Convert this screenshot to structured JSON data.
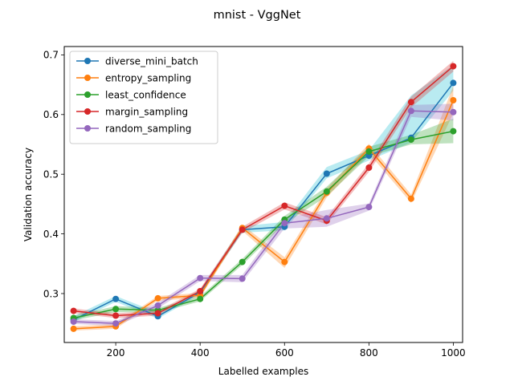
{
  "chart_data": {
    "type": "line",
    "title": "mnist - VggNet",
    "xlabel": "Labelled examples",
    "ylabel": "Validation accuracy",
    "xlim": [
      78,
      1022
    ],
    "ylim": [
      0.218,
      0.714
    ],
    "xticks": [
      200,
      400,
      600,
      800,
      1000
    ],
    "yticks": [
      0.3,
      0.4,
      0.5,
      0.6,
      0.7
    ],
    "grid": false,
    "legend_position": "top-left",
    "x": [
      100,
      200,
      300,
      400,
      500,
      600,
      700,
      800,
      900,
      1000
    ],
    "series": [
      {
        "name": "diverse_mini_batch",
        "color": "#1f77b4",
        "band_color": "#17becf",
        "values": [
          0.256,
          0.291,
          0.262,
          0.302,
          0.407,
          0.412,
          0.501,
          0.531,
          0.561,
          0.653
        ],
        "lower": [
          0.252,
          0.286,
          0.258,
          0.298,
          0.402,
          0.406,
          0.493,
          0.523,
          0.553,
          0.64
        ],
        "upper": [
          0.262,
          0.296,
          0.268,
          0.306,
          0.413,
          0.42,
          0.512,
          0.54,
          0.632,
          0.683
        ]
      },
      {
        "name": "entropy_sampling",
        "color": "#ff7f0e",
        "band_color": "#ff7f0e",
        "values": [
          0.241,
          0.245,
          0.292,
          0.297,
          0.41,
          0.353,
          0.469,
          0.543,
          0.459,
          0.624
        ],
        "lower": [
          0.238,
          0.241,
          0.288,
          0.293,
          0.405,
          0.343,
          0.461,
          0.535,
          0.452,
          0.602
        ],
        "upper": [
          0.245,
          0.249,
          0.296,
          0.301,
          0.415,
          0.361,
          0.476,
          0.551,
          0.466,
          0.648
        ]
      },
      {
        "name": "least_confidence",
        "color": "#2ca02c",
        "band_color": "#2ca02c",
        "values": [
          0.259,
          0.274,
          0.272,
          0.291,
          0.353,
          0.424,
          0.471,
          0.538,
          0.558,
          0.572
        ],
        "lower": [
          0.255,
          0.269,
          0.268,
          0.287,
          0.348,
          0.417,
          0.463,
          0.53,
          0.55,
          0.552
        ],
        "upper": [
          0.263,
          0.279,
          0.276,
          0.295,
          0.358,
          0.43,
          0.479,
          0.546,
          0.566,
          0.593
        ]
      },
      {
        "name": "margin_sampling",
        "color": "#d62728",
        "band_color": "#d62728",
        "values": [
          0.271,
          0.263,
          0.267,
          0.304,
          0.407,
          0.447,
          0.422,
          0.511,
          0.621,
          0.681
        ],
        "lower": [
          0.267,
          0.259,
          0.263,
          0.3,
          0.402,
          0.441,
          0.416,
          0.504,
          0.612,
          0.672
        ],
        "upper": [
          0.275,
          0.267,
          0.271,
          0.308,
          0.412,
          0.453,
          0.428,
          0.518,
          0.63,
          0.69
        ]
      },
      {
        "name": "random_sampling",
        "color": "#9467bd",
        "band_color": "#9467bd",
        "values": [
          0.253,
          0.25,
          0.28,
          0.326,
          0.325,
          0.418,
          0.426,
          0.445,
          0.606,
          0.604
        ],
        "lower": [
          0.249,
          0.246,
          0.275,
          0.321,
          0.319,
          0.409,
          0.412,
          0.439,
          0.596,
          0.59
        ],
        "upper": [
          0.257,
          0.254,
          0.285,
          0.331,
          0.331,
          0.427,
          0.44,
          0.451,
          0.616,
          0.618
        ]
      }
    ]
  }
}
